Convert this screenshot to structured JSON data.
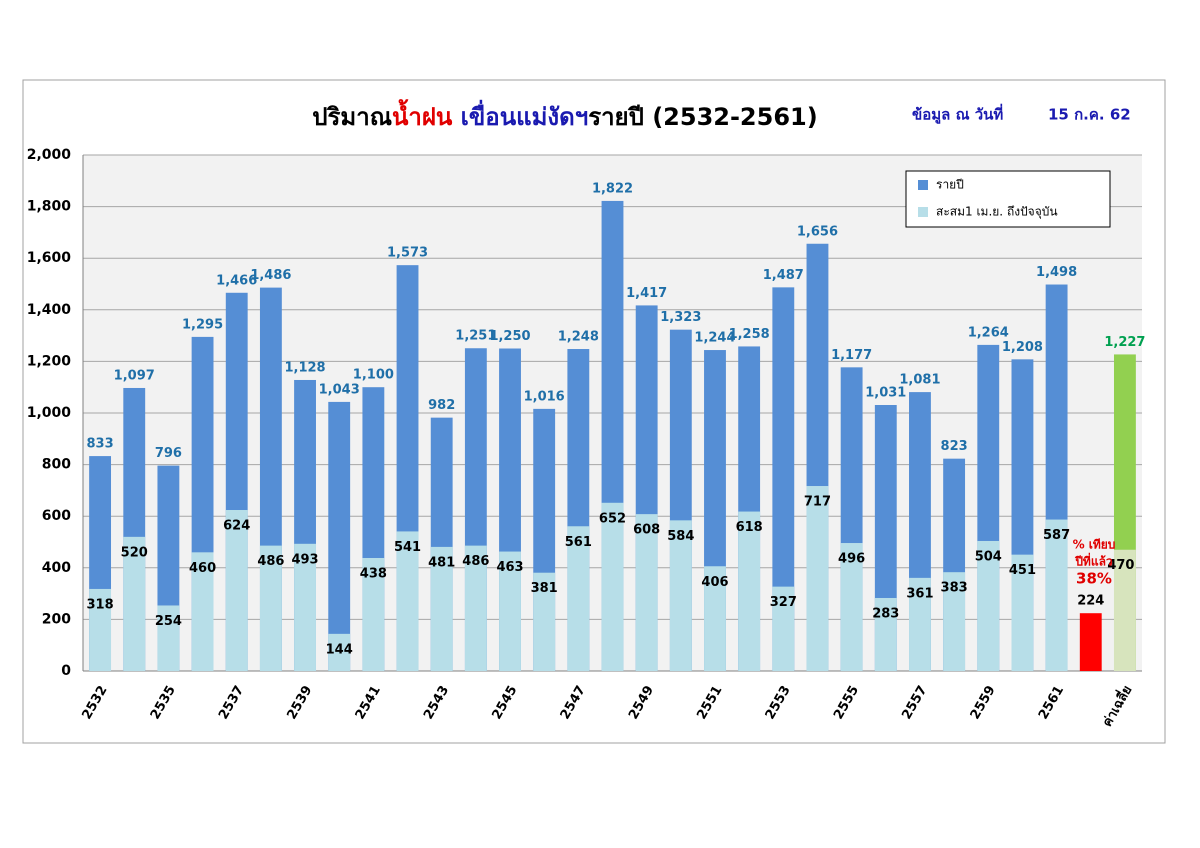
{
  "chart_data": {
    "type": "bar",
    "title": [
      {
        "text": "ปริมาณ",
        "color": "#000000"
      },
      {
        "text": "น้ำฝน",
        "color": "#e00000"
      },
      {
        "text": " เขื่อนแม่งัดฯ",
        "color": "#1a1ab0"
      },
      {
        "text": "รายปี  (2532-2561)",
        "color": "#000000"
      }
    ],
    "subtitle": [
      "ข้อมูล ณ วันที่",
      "15 ก.ค. 62"
    ],
    "subtitle_color": "#1a1ab0",
    "categories": [
      "2532",
      null,
      "2535",
      null,
      "2537",
      null,
      "2539",
      null,
      "2541",
      null,
      "2543",
      null,
      "2545",
      null,
      "2547",
      null,
      "2549",
      null,
      "2551",
      null,
      "2553",
      null,
      "2555",
      null,
      "2557",
      null,
      "2559",
      null,
      "2561",
      null,
      "ค่าเฉลี่ย"
    ],
    "series": [
      {
        "name": "รายปี",
        "color": "#558ed5",
        "last_color": "#92d050",
        "label_color": "#1f6fa8",
        "last_label_color": "#00a050",
        "label_position": "above",
        "values": [
          833,
          1097,
          796,
          1295,
          1466,
          1486,
          1128,
          1043,
          1100,
          1573,
          982,
          1251,
          1250,
          1016,
          1248,
          1822,
          1417,
          1323,
          1244,
          1258,
          1487,
          1656,
          1177,
          1031,
          1081,
          823,
          1264,
          1208,
          1498,
          null,
          1227
        ],
        "value_labels": [
          "833",
          "1,097",
          "796",
          "1,295",
          "1,466",
          "1,486",
          "1,128",
          "1,043",
          "1,100",
          "1,573",
          "982",
          "1,251",
          "1,250",
          "1,016",
          "1,248",
          "1,822",
          "1,417",
          "1,323",
          "1,244",
          "1,258",
          "1,487",
          "1,656",
          "1,177",
          "1,031",
          "1,081",
          "823",
          "1,264",
          "1,208",
          "1,498",
          null,
          "1,227"
        ]
      },
      {
        "name": "สะสม1 เม.ย. ถึงปัจจุบัน",
        "color": "#b7dee8",
        "last_color": "#d7e4bd",
        "label_color": "#000000",
        "last_label_color": "#000000",
        "label_position": "inside",
        "values": [
          318,
          520,
          254,
          460,
          624,
          486,
          493,
          144,
          438,
          541,
          481,
          486,
          463,
          381,
          561,
          652,
          608,
          584,
          406,
          618,
          327,
          717,
          496,
          283,
          361,
          383,
          504,
          451,
          587,
          null,
          470
        ]
      },
      {
        "color": "#ff0000",
        "last_color": "#ff0000",
        "label_color": "#000000",
        "last_label_color": "#000000",
        "label_position": "above",
        "values": [
          null,
          null,
          null,
          null,
          null,
          null,
          null,
          null,
          null,
          null,
          null,
          null,
          null,
          null,
          null,
          null,
          null,
          null,
          null,
          null,
          null,
          null,
          null,
          null,
          null,
          null,
          null,
          null,
          null,
          224,
          null
        ]
      }
    ],
    "annotation": [
      "% เทียบ",
      "ปีที่แล้ว",
      "38%"
    ],
    "annotation_color": "#e00000",
    "ylim": [
      0,
      2000
    ],
    "yticks": [
      0,
      200,
      400,
      600,
      800,
      {
        "value": 1000,
        "label": "1,000"
      },
      {
        "value": 1200,
        "label": "1,200"
      },
      {
        "value": 1400,
        "label": "1,400"
      },
      {
        "value": 1600,
        "label": "1,600"
      },
      {
        "value": 1800,
        "label": "1,800"
      },
      {
        "value": 2000,
        "label": "2,000"
      }
    ],
    "grid": true,
    "legend": "upper right"
  }
}
